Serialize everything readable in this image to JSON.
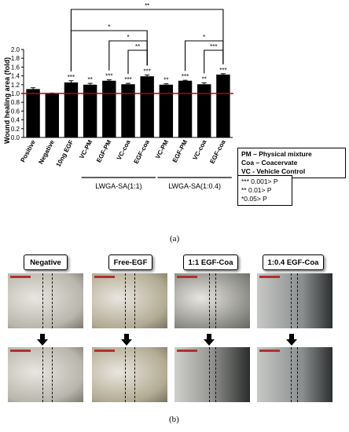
{
  "chart_data": {
    "type": "bar",
    "ylabel": "Wound healing area (fold)",
    "ylim": [
      0.0,
      2.0
    ],
    "yticks": [
      "0.0",
      "0.2",
      "0.4",
      "0.6",
      "0.8",
      "1.0",
      "1.2",
      "1.4",
      "1.6",
      "1.8",
      "2.0"
    ],
    "categories": [
      "Positive",
      "Negative",
      "10ng EGF",
      "VC-PM",
      "EGF-PM",
      "VC-coa",
      "EGF-coa",
      "VC-PM",
      "EGF-PM",
      "VC-coa",
      "EGF-coa"
    ],
    "values": [
      1.1,
      1.0,
      1.25,
      1.2,
      1.29,
      1.21,
      1.39,
      1.2,
      1.29,
      1.21,
      1.43
    ],
    "errors": [
      0.03,
      0.01,
      0.04,
      0.03,
      0.02,
      0.02,
      0.03,
      0.02,
      0.01,
      0.03,
      0.02
    ],
    "significance": [
      "",
      "",
      "***",
      "**",
      "***",
      "***",
      "***",
      "**",
      "***",
      "**",
      "***"
    ],
    "reference_line": 1.0,
    "reference_color": "#c00000",
    "bar_color": "#000000",
    "groups": [
      {
        "label": "LWGA-SA(1:1)",
        "from": 3,
        "to": 6
      },
      {
        "label": "LWGA-SA(1:0.4)",
        "from": 7,
        "to": 10
      }
    ],
    "brackets": [
      {
        "from": 2,
        "to": 10,
        "label": "**"
      },
      {
        "from": 2,
        "to": 6,
        "label": "*"
      },
      {
        "from": 4,
        "to": 6,
        "label": "*"
      },
      {
        "from": 5,
        "to": 6,
        "label": "**"
      },
      {
        "from": 8,
        "to": 10,
        "label": "*"
      },
      {
        "from": 9,
        "to": 10,
        "label": "***"
      }
    ],
    "grid": false
  },
  "legend_abbrev": [
    "PM – Physical mixture",
    "Coa – Coacervate",
    "VC - Vehicle Control"
  ],
  "legend_sig": [
    "*** 0.001> P",
    "** 0.01> P",
    "*0.05> P"
  ],
  "panel_a": "(a)",
  "panel_b": "(b)",
  "micrograph_titles": [
    "Negative",
    "Free-EGF",
    "1:1 EGF-Coa",
    "1:0.4 EGF-Coa"
  ],
  "micro_colors": [
    "#b9b6ad",
    "#b3ab93",
    "#8e8e89",
    "#8a8e8e"
  ]
}
